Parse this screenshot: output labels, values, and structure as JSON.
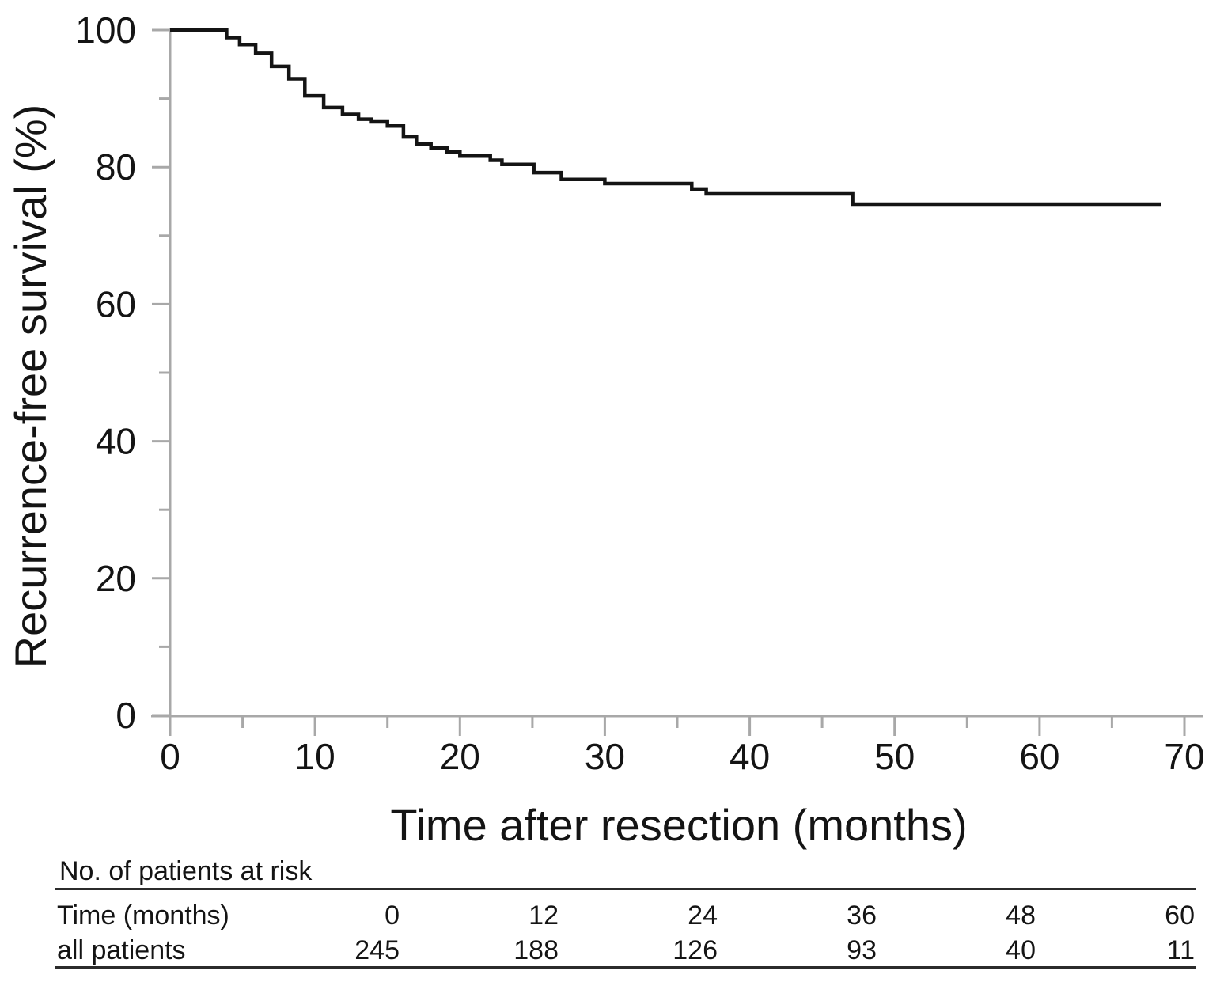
{
  "chart_data": {
    "type": "line",
    "subtype": "kaplan-meier-step-curve",
    "title": "",
    "xlabel": "Time after resection (months)",
    "ylabel": "Recurrence-free survival (%)",
    "xlim": [
      0,
      70
    ],
    "ylim": [
      0,
      100
    ],
    "x_major_ticks": [
      0,
      10,
      20,
      30,
      40,
      50,
      60,
      70
    ],
    "x_minor_ticks": [
      5,
      15,
      25,
      35,
      45,
      55,
      65
    ],
    "y_major_ticks": [
      0,
      20,
      40,
      60,
      80,
      100
    ],
    "y_minor_ticks": [
      10,
      30,
      50,
      70,
      90
    ],
    "grid": false,
    "legend": null,
    "series": [
      {
        "name": "all patients",
        "color": "#141414",
        "steps": [
          [
            0,
            100.0
          ],
          [
            3.9,
            98.9
          ],
          [
            4.8,
            97.9
          ],
          [
            5.9,
            96.6
          ],
          [
            7.0,
            94.7
          ],
          [
            8.2,
            92.9
          ],
          [
            9.3,
            90.4
          ],
          [
            10.6,
            88.7
          ],
          [
            11.9,
            87.7
          ],
          [
            13.0,
            87.0
          ],
          [
            13.9,
            86.6
          ],
          [
            15.0,
            86.0
          ],
          [
            16.1,
            84.4
          ],
          [
            17.0,
            83.4
          ],
          [
            18.0,
            82.8
          ],
          [
            19.1,
            82.2
          ],
          [
            20.0,
            81.6
          ],
          [
            22.1,
            81.0
          ],
          [
            22.9,
            80.4
          ],
          [
            25.1,
            79.2
          ],
          [
            27.0,
            78.2
          ],
          [
            30.0,
            77.6
          ],
          [
            36.0,
            76.8
          ],
          [
            37.0,
            76.1
          ],
          [
            47.1,
            74.6
          ]
        ],
        "end_time": 68.4,
        "final_value": 74.6
      }
    ]
  },
  "risk_table": {
    "title": "No. of patients at risk",
    "rows": [
      {
        "label": "Time (months)",
        "cells": [
          "0",
          "12",
          "24",
          "36",
          "48",
          "60"
        ]
      },
      {
        "label": "all patients",
        "cells": [
          "245",
          "188",
          "126",
          "93",
          "40",
          "11"
        ]
      }
    ]
  },
  "colors": {
    "axis": "#a8a8a8",
    "curve": "#141414",
    "text": "#141414",
    "table_rule": "#2b2b2b",
    "background": "#ffffff"
  }
}
